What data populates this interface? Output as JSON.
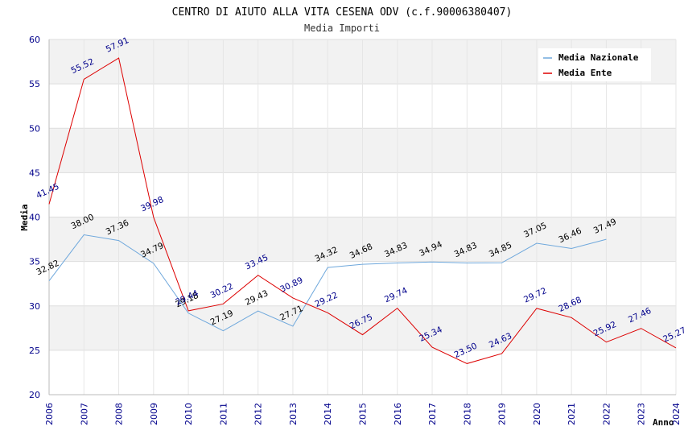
{
  "chart_data": {
    "type": "line",
    "title": "CENTRO DI AIUTO ALLA VITA CESENA ODV (c.f.90006380407)",
    "subtitle": "Media Importi",
    "xlabel": "Anno",
    "ylabel": "Media",
    "ylim": [
      20,
      60
    ],
    "yticks": [
      20,
      25,
      30,
      35,
      40,
      45,
      50,
      55,
      60
    ],
    "grid": true,
    "legend_position": "top-right",
    "categories": [
      "2006",
      "2007",
      "2008",
      "2009",
      "2010",
      "2011",
      "2012",
      "2013",
      "2014",
      "2015",
      "2016",
      "2017",
      "2018",
      "2019",
      "2020",
      "2021",
      "2022",
      "2023",
      "2024"
    ],
    "series": [
      {
        "name": "Media Nazionale",
        "color": "#6fa8dc",
        "label_color": "#000000",
        "values": [
          32.82,
          38.0,
          37.36,
          34.79,
          29.18,
          27.19,
          29.43,
          27.71,
          34.32,
          34.68,
          34.83,
          34.94,
          34.83,
          34.85,
          37.05,
          36.46,
          37.49,
          null,
          null
        ],
        "labels": [
          "32.82",
          "38.00",
          "37.36",
          "34.79",
          "29.18",
          "27.19",
          "29.43",
          "27.71",
          "34.32",
          "34.68",
          "34.83",
          "34.94",
          "34.83",
          "34.85",
          "37.05",
          "36.46",
          "37.49",
          null,
          null
        ]
      },
      {
        "name": "Media Ente",
        "color": "#dd0000",
        "label_color": "#00008b",
        "values": [
          41.45,
          55.52,
          57.91,
          39.98,
          29.44,
          30.22,
          33.45,
          30.89,
          29.22,
          26.75,
          29.74,
          25.34,
          23.5,
          24.63,
          29.72,
          28.68,
          25.92,
          27.46,
          25.27
        ],
        "labels": [
          "41.45",
          "55.52",
          "57.91",
          "39.98",
          "29.44",
          "30.22",
          "33.45",
          "30.89",
          "29.22",
          "26.75",
          "29.74",
          "25.34",
          "23.50",
          "24.63",
          "29.72",
          "28.68",
          "25.92",
          "27.46",
          "25.27"
        ]
      }
    ]
  }
}
